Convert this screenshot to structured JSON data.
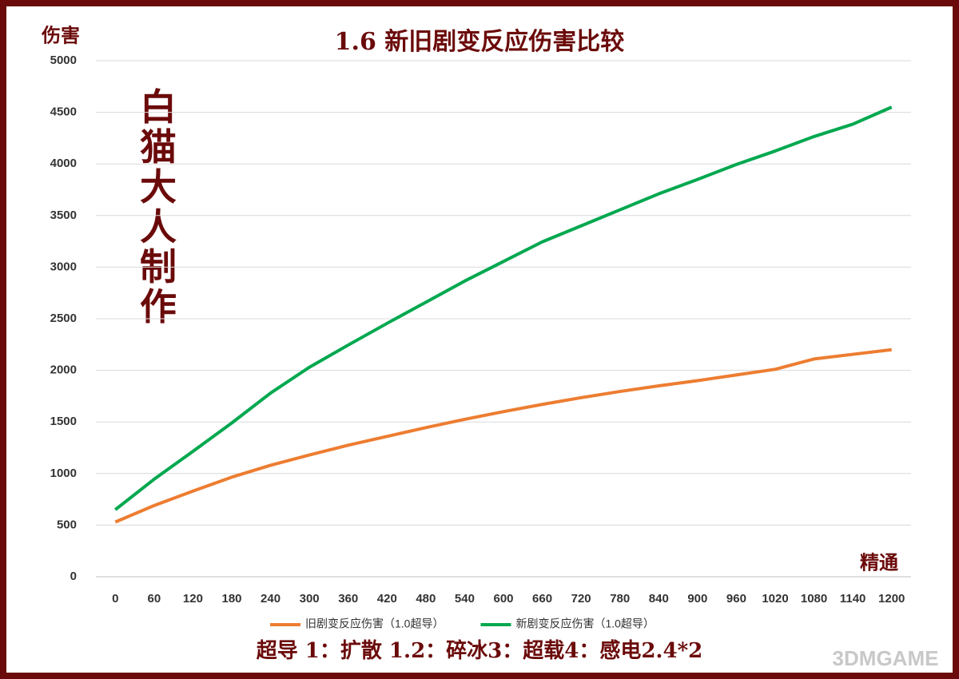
{
  "chart_data": {
    "type": "line",
    "title": "1.6 新旧剧变反应伤害比较",
    "y_label": "伤害",
    "x_label": "精通",
    "watermark": "白猫大人制作",
    "footnote": "超导 1：扩散 1.2：碎冰3：超载4：感电2.4*2",
    "logo": "3DMGAME",
    "categories": [
      "0",
      "60",
      "120",
      "180",
      "240",
      "300",
      "360",
      "420",
      "480",
      "540",
      "600",
      "660",
      "720",
      "780",
      "840",
      "900",
      "960",
      "1020",
      "1080",
      "1140",
      "1200"
    ],
    "series": [
      {
        "name": "旧剧变反应伤害（1.0超导）",
        "color": "#ed7d31",
        "values": [
          530,
          690,
          830,
          965,
          1080,
          1180,
          1275,
          1360,
          1445,
          1525,
          1600,
          1670,
          1735,
          1795,
          1850,
          1900,
          1955,
          2010,
          2110,
          2155,
          2200
        ]
      },
      {
        "name": "新剧变反应伤害（1.0超导）",
        "color": "#00a84f",
        "values": [
          650,
          945,
          1215,
          1490,
          1780,
          2030,
          2245,
          2455,
          2660,
          2865,
          3055,
          3245,
          3400,
          3555,
          3710,
          3850,
          3995,
          4125,
          4265,
          4385,
          4550
        ]
      }
    ],
    "ylim": [
      0,
      5000
    ],
    "yticks": [
      0,
      500,
      1000,
      1500,
      2000,
      2500,
      3000,
      3500,
      4000,
      4500,
      5000
    ],
    "grid": true
  }
}
